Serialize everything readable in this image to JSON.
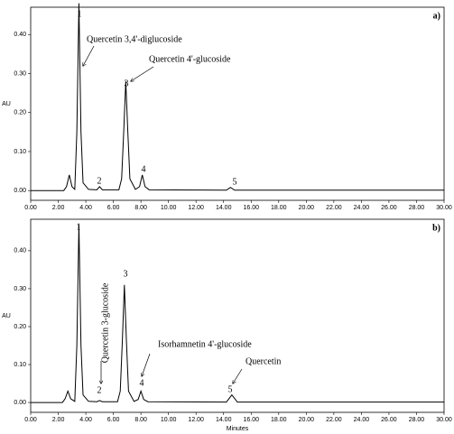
{
  "chart_data": [
    {
      "type": "line",
      "panel_label": "a)",
      "y_label": "AU",
      "xlim": [
        0,
        30
      ],
      "ylim": [
        -0.025,
        0.47
      ],
      "xticks": [
        {
          "value": 0,
          "label": "0.00"
        },
        {
          "value": 2,
          "label": "2.00"
        },
        {
          "value": 4,
          "label": "4.00"
        },
        {
          "value": 6,
          "label": "6.00"
        },
        {
          "value": 8,
          "label": "8.00"
        },
        {
          "value": 10,
          "label": "10.00"
        },
        {
          "value": 12,
          "label": "12.00"
        },
        {
          "value": 14,
          "label": "14.00"
        },
        {
          "value": 16,
          "label": "16.00"
        },
        {
          "value": 18,
          "label": "18.00"
        },
        {
          "value": 20,
          "label": "20.00"
        },
        {
          "value": 22,
          "label": "22.00"
        },
        {
          "value": 24,
          "label": "24.00"
        },
        {
          "value": 26,
          "label": "26.00"
        },
        {
          "value": 28,
          "label": "28.00"
        },
        {
          "value": 30,
          "label": "30.00"
        }
      ],
      "yticks": [
        {
          "value": 0,
          "label": "0.00"
        },
        {
          "value": 0.1,
          "label": "0.10"
        },
        {
          "value": 0.2,
          "label": "0.20"
        },
        {
          "value": 0.3,
          "label": "0.30"
        },
        {
          "value": 0.4,
          "label": "0.40"
        }
      ],
      "series": [
        {
          "color": "#000000",
          "x": [
            0,
            2.4,
            2.6,
            2.8,
            3.0,
            3.2,
            3.35,
            3.5,
            3.65,
            3.8,
            4.2,
            4.8,
            5.0,
            5.2,
            6.4,
            6.6,
            6.75,
            6.9,
            7.05,
            7.2,
            7.6,
            7.9,
            8.1,
            8.3,
            8.6,
            14.2,
            14.5,
            14.8,
            30
          ],
          "values": [
            0,
            0,
            0.01,
            0.04,
            0.01,
            0.003,
            0.15,
            0.48,
            0.15,
            0.02,
            0.003,
            0.002,
            0.01,
            0.002,
            0.002,
            0.03,
            0.15,
            0.28,
            0.15,
            0.03,
            0.003,
            0.01,
            0.04,
            0.01,
            0.002,
            0.001,
            0.008,
            0.001,
            0.001
          ]
        }
      ],
      "peak_labels": [
        "1",
        "2",
        "3",
        "4",
        "5"
      ],
      "annotations": [
        "Quercetin 3,4'-diglucoside",
        "Quercetin 4'-glucoside"
      ]
    },
    {
      "type": "line",
      "panel_label": "b)",
      "y_label": "AU",
      "x_label": "Minutes",
      "xlim": [
        0,
        30
      ],
      "ylim": [
        -0.026,
        0.483
      ],
      "xticks": [
        {
          "value": 0,
          "label": "0.00"
        },
        {
          "value": 2,
          "label": "2.00"
        },
        {
          "value": 4,
          "label": "4.00"
        },
        {
          "value": 6,
          "label": "6.00"
        },
        {
          "value": 8,
          "label": "8.00"
        },
        {
          "value": 10,
          "label": "10.00"
        },
        {
          "value": 12,
          "label": "12.00"
        },
        {
          "value": 14,
          "label": "14.00"
        },
        {
          "value": 16,
          "label": "16.00"
        },
        {
          "value": 18,
          "label": "18.00"
        },
        {
          "value": 20,
          "label": "20.00"
        },
        {
          "value": 22,
          "label": "22.00"
        },
        {
          "value": 24,
          "label": "24.00"
        },
        {
          "value": 26,
          "label": "26.00"
        },
        {
          "value": 28,
          "label": "28.00"
        },
        {
          "value": 30,
          "label": "30.00"
        }
      ],
      "yticks": [
        {
          "value": 0,
          "label": "0.00"
        },
        {
          "value": 0.1,
          "label": "0.10"
        },
        {
          "value": 0.2,
          "label": "0.20"
        },
        {
          "value": 0.3,
          "label": "0.30"
        },
        {
          "value": 0.4,
          "label": "0.40"
        }
      ],
      "series": [
        {
          "color": "#000000",
          "x": [
            0,
            2.3,
            2.5,
            2.7,
            2.9,
            3.2,
            3.35,
            3.5,
            3.65,
            3.8,
            4.2,
            4.8,
            5.0,
            5.2,
            6.3,
            6.5,
            6.65,
            6.8,
            6.95,
            7.1,
            7.5,
            7.8,
            8.0,
            8.2,
            8.5,
            14.2,
            14.6,
            15.0,
            30
          ],
          "values": [
            0,
            0,
            0.01,
            0.03,
            0.01,
            0.003,
            0.15,
            0.47,
            0.15,
            0.02,
            0.003,
            0.002,
            0.005,
            0.002,
            0.002,
            0.03,
            0.16,
            0.31,
            0.16,
            0.03,
            0.003,
            0.008,
            0.03,
            0.008,
            0.002,
            0.001,
            0.02,
            0.001,
            0.001
          ]
        }
      ],
      "peak_labels": [
        "1",
        "2",
        "3",
        "4",
        "5"
      ],
      "annotations": [
        "Quercetin 3-glucoside",
        "Isorhamnetin 4'-glucoside",
        "Quercetin"
      ]
    }
  ]
}
